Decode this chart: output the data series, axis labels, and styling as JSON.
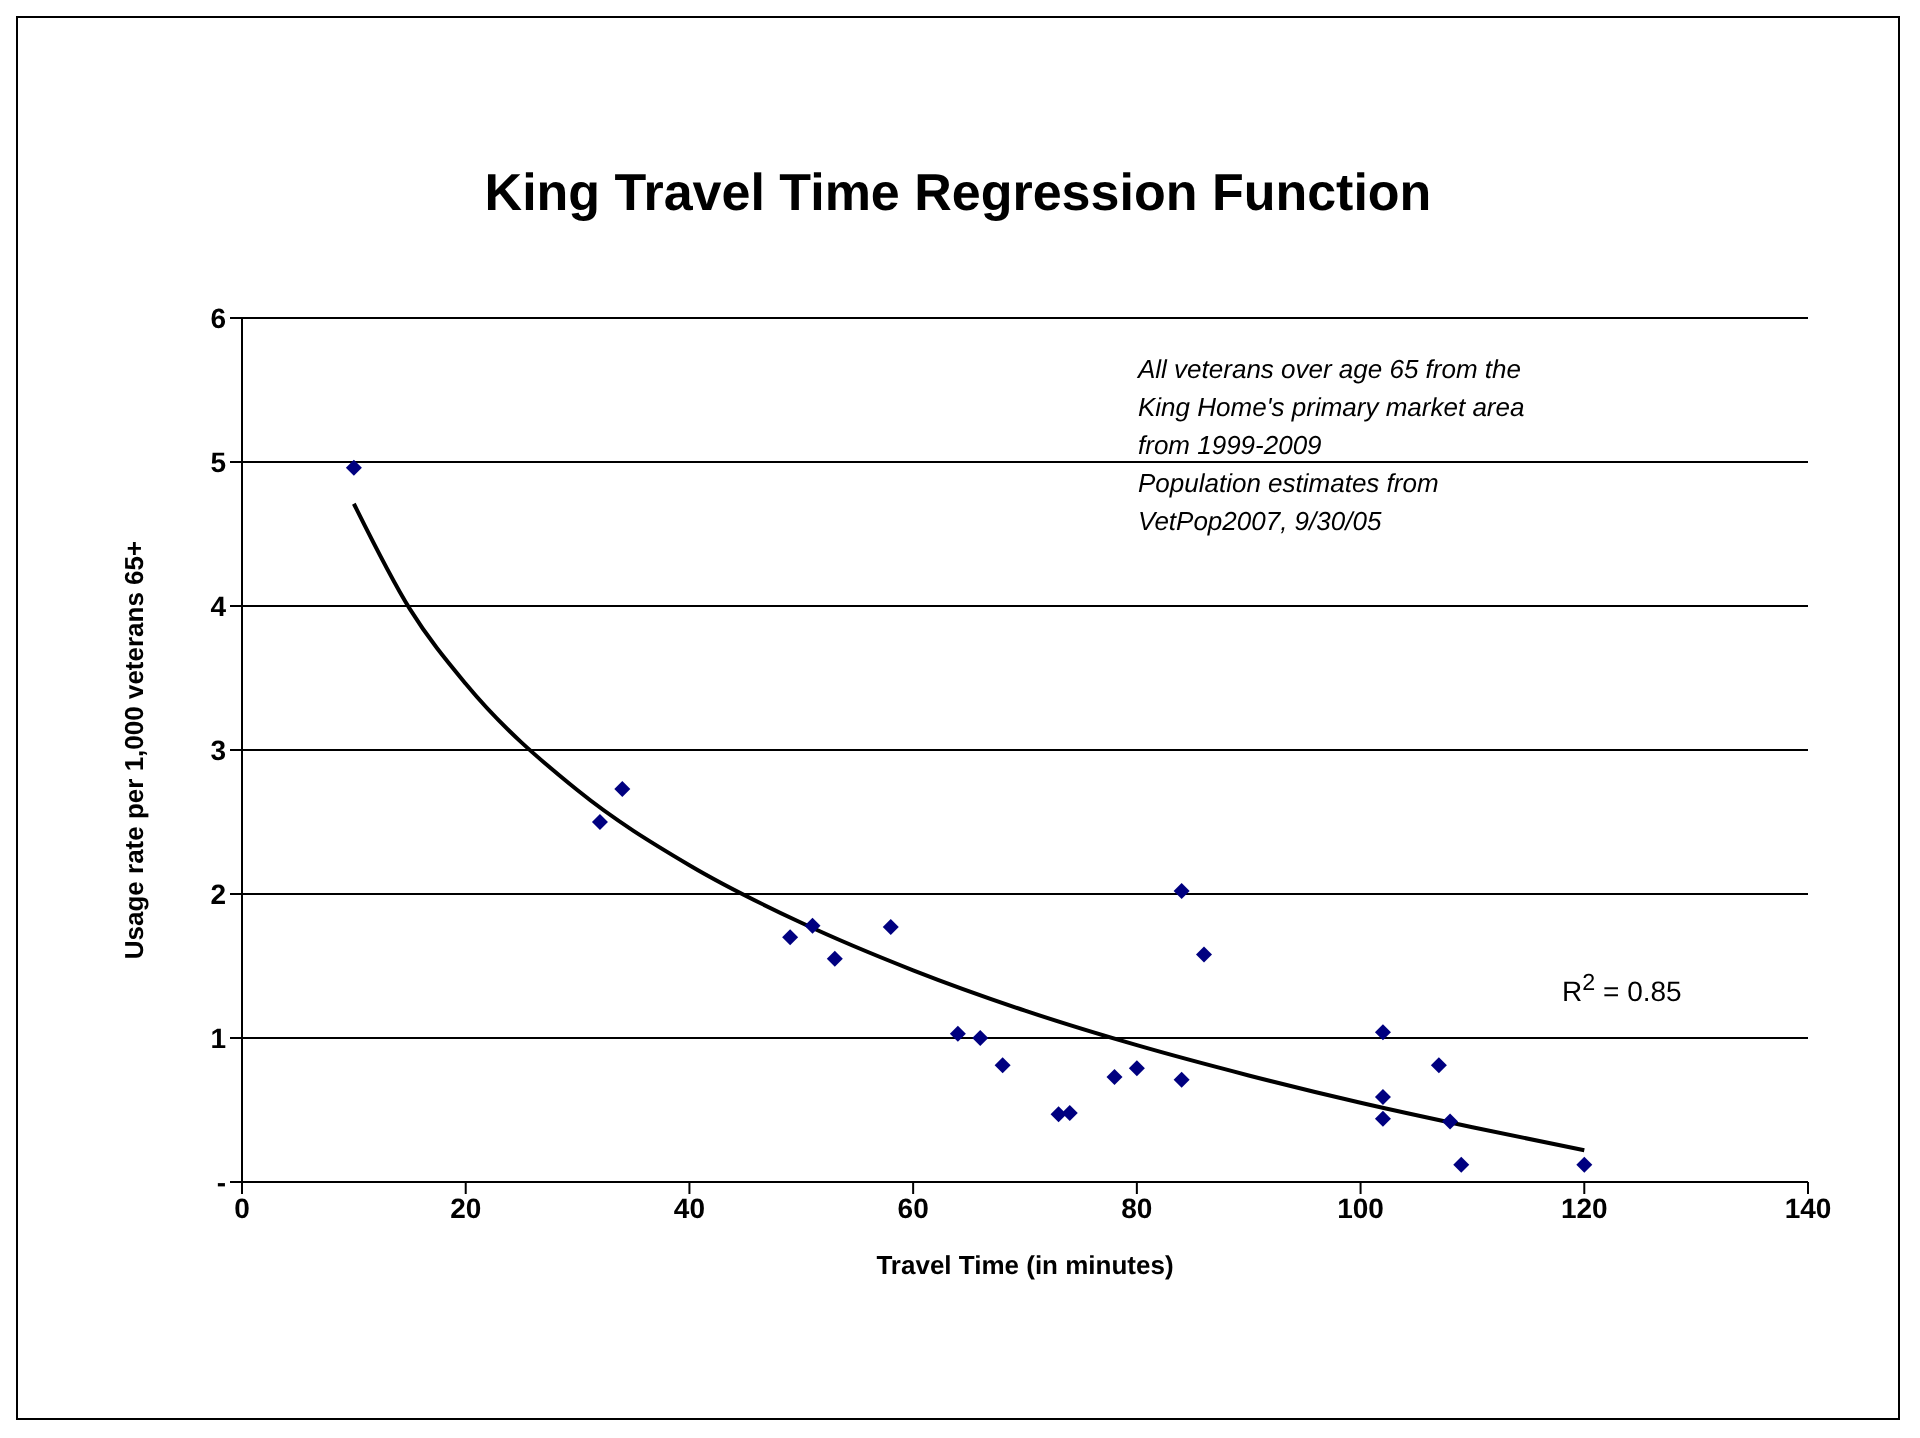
{
  "chart_data": {
    "type": "scatter",
    "title": "King Travel Time Regression Function",
    "xlabel": "Travel Time (in minutes)",
    "ylabel": "Usage rate per 1,000 veterans 65+",
    "series": [
      {
        "color": "#000080",
        "marker": "diamond",
        "x": [
          10,
          32,
          34,
          49,
          51,
          53,
          58,
          64,
          66,
          68,
          73,
          74,
          78,
          80,
          84,
          84,
          86,
          102,
          102,
          102,
          107,
          108,
          109,
          120
        ],
        "values": [
          4.96,
          2.5,
          2.73,
          1.7,
          1.78,
          1.55,
          1.77,
          1.03,
          1.0,
          0.81,
          0.47,
          0.48,
          0.73,
          0.79,
          0.71,
          2.02,
          1.58,
          1.04,
          0.59,
          0.44,
          0.81,
          0.42,
          0.12,
          0.12
        ]
      },
      {
        "type": "line",
        "color": "#000000",
        "marker": "none",
        "x": [
          10,
          15,
          20,
          30,
          40,
          50,
          60,
          70,
          80,
          90,
          100,
          110,
          120
        ],
        "values": [
          4.71,
          3.98,
          3.46,
          2.72,
          2.2,
          1.8,
          1.47,
          1.19,
          0.95,
          0.74,
          0.55,
          0.38,
          0.22
        ]
      }
    ],
    "xlim": [
      0,
      140
    ],
    "xticks": [
      0,
      20,
      40,
      60,
      80,
      100,
      120,
      140
    ],
    "ylim": [
      0,
      6
    ],
    "yticks": [
      {
        "value": 0,
        "label": "-"
      },
      1,
      2,
      3,
      4,
      5,
      6
    ],
    "grid": "y",
    "annotations": [
      "All veterans over age 65 from the King Home's primary market area from 1999-2009",
      "Population estimates from VetPop2007, 9/30/05",
      "R$^{2}$ = 0.85"
    ]
  }
}
